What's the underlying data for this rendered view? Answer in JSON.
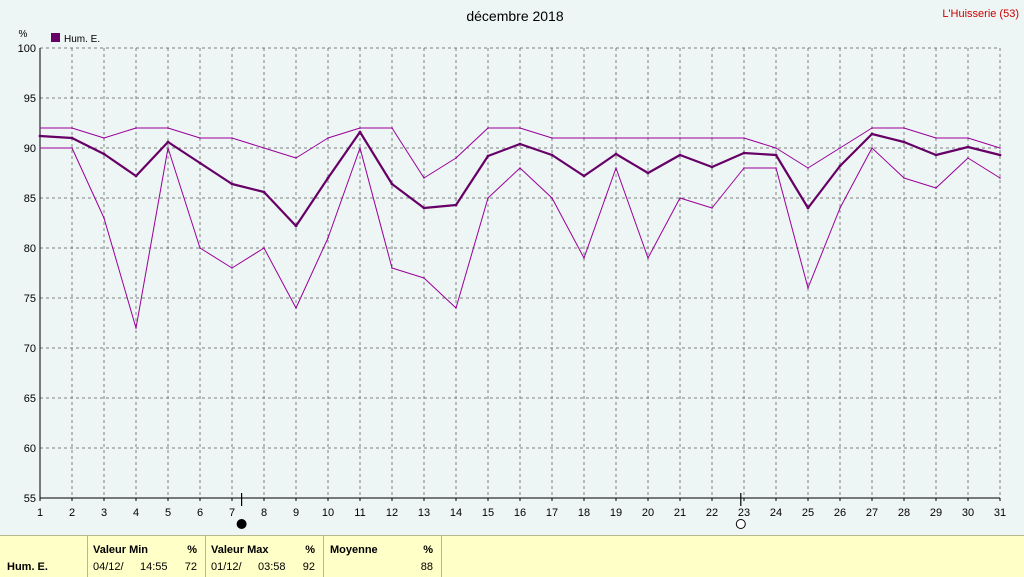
{
  "header": {
    "title": "décembre 2018",
    "station": "L'Huisserie (53)"
  },
  "chart_data": {
    "type": "line",
    "title": "décembre 2018",
    "ylabel": "%",
    "ylim": [
      55,
      100
    ],
    "yticks": [
      55,
      60,
      65,
      70,
      75,
      80,
      85,
      90,
      95,
      100
    ],
    "x": [
      1,
      2,
      3,
      4,
      5,
      6,
      7,
      8,
      9,
      10,
      11,
      12,
      13,
      14,
      15,
      16,
      17,
      18,
      19,
      20,
      21,
      22,
      23,
      24,
      25,
      26,
      27,
      28,
      29,
      30,
      31
    ],
    "grid": true,
    "legend": {
      "label": "Hum. E.",
      "placement": "top-left"
    },
    "series": [
      {
        "name": "Hum. E.",
        "role": "mean",
        "color": "#660066",
        "values": [
          91.2,
          91,
          89.4,
          87.2,
          90.6,
          88.5,
          86.4,
          85.6,
          82.2,
          87,
          91.6,
          86.4,
          84,
          84.3,
          89.2,
          90.4,
          89.3,
          87.2,
          89.4,
          87.5,
          89.3,
          88.1,
          89.5,
          89.3,
          84,
          88.2,
          91.4,
          90.6,
          89.3,
          90.1,
          89.3
        ]
      },
      {
        "role": "max",
        "color": "#990099",
        "values": [
          92,
          92,
          91,
          92,
          92,
          91,
          91,
          90,
          89,
          91,
          92,
          92,
          87,
          89,
          92,
          92,
          91,
          91,
          91,
          91,
          91,
          91,
          91,
          90,
          88,
          90,
          92,
          92,
          91,
          91,
          90
        ]
      },
      {
        "role": "min",
        "color": "#990099",
        "values": [
          90,
          90,
          83,
          72,
          90,
          80,
          78,
          80,
          74,
          81,
          90,
          78,
          77,
          74,
          85,
          88,
          85,
          79,
          88,
          79,
          85,
          84,
          88,
          88,
          76,
          84,
          90,
          87,
          86,
          89,
          87
        ]
      }
    ],
    "moon_phases": [
      {
        "day": 7.3,
        "phase": "new"
      },
      {
        "day": 22.9,
        "phase": "full"
      }
    ]
  },
  "footer": {
    "row_label": "Hum. E.",
    "min": {
      "label": "Valeur Min",
      "unit": "%",
      "date": "04/12/",
      "time": "14:55",
      "value": "72"
    },
    "max": {
      "label": "Valeur Max",
      "unit": "%",
      "date": "01/12/",
      "time": "03:58",
      "value": "92"
    },
    "avg": {
      "label": "Moyenne",
      "unit": "%",
      "value": "88"
    }
  }
}
